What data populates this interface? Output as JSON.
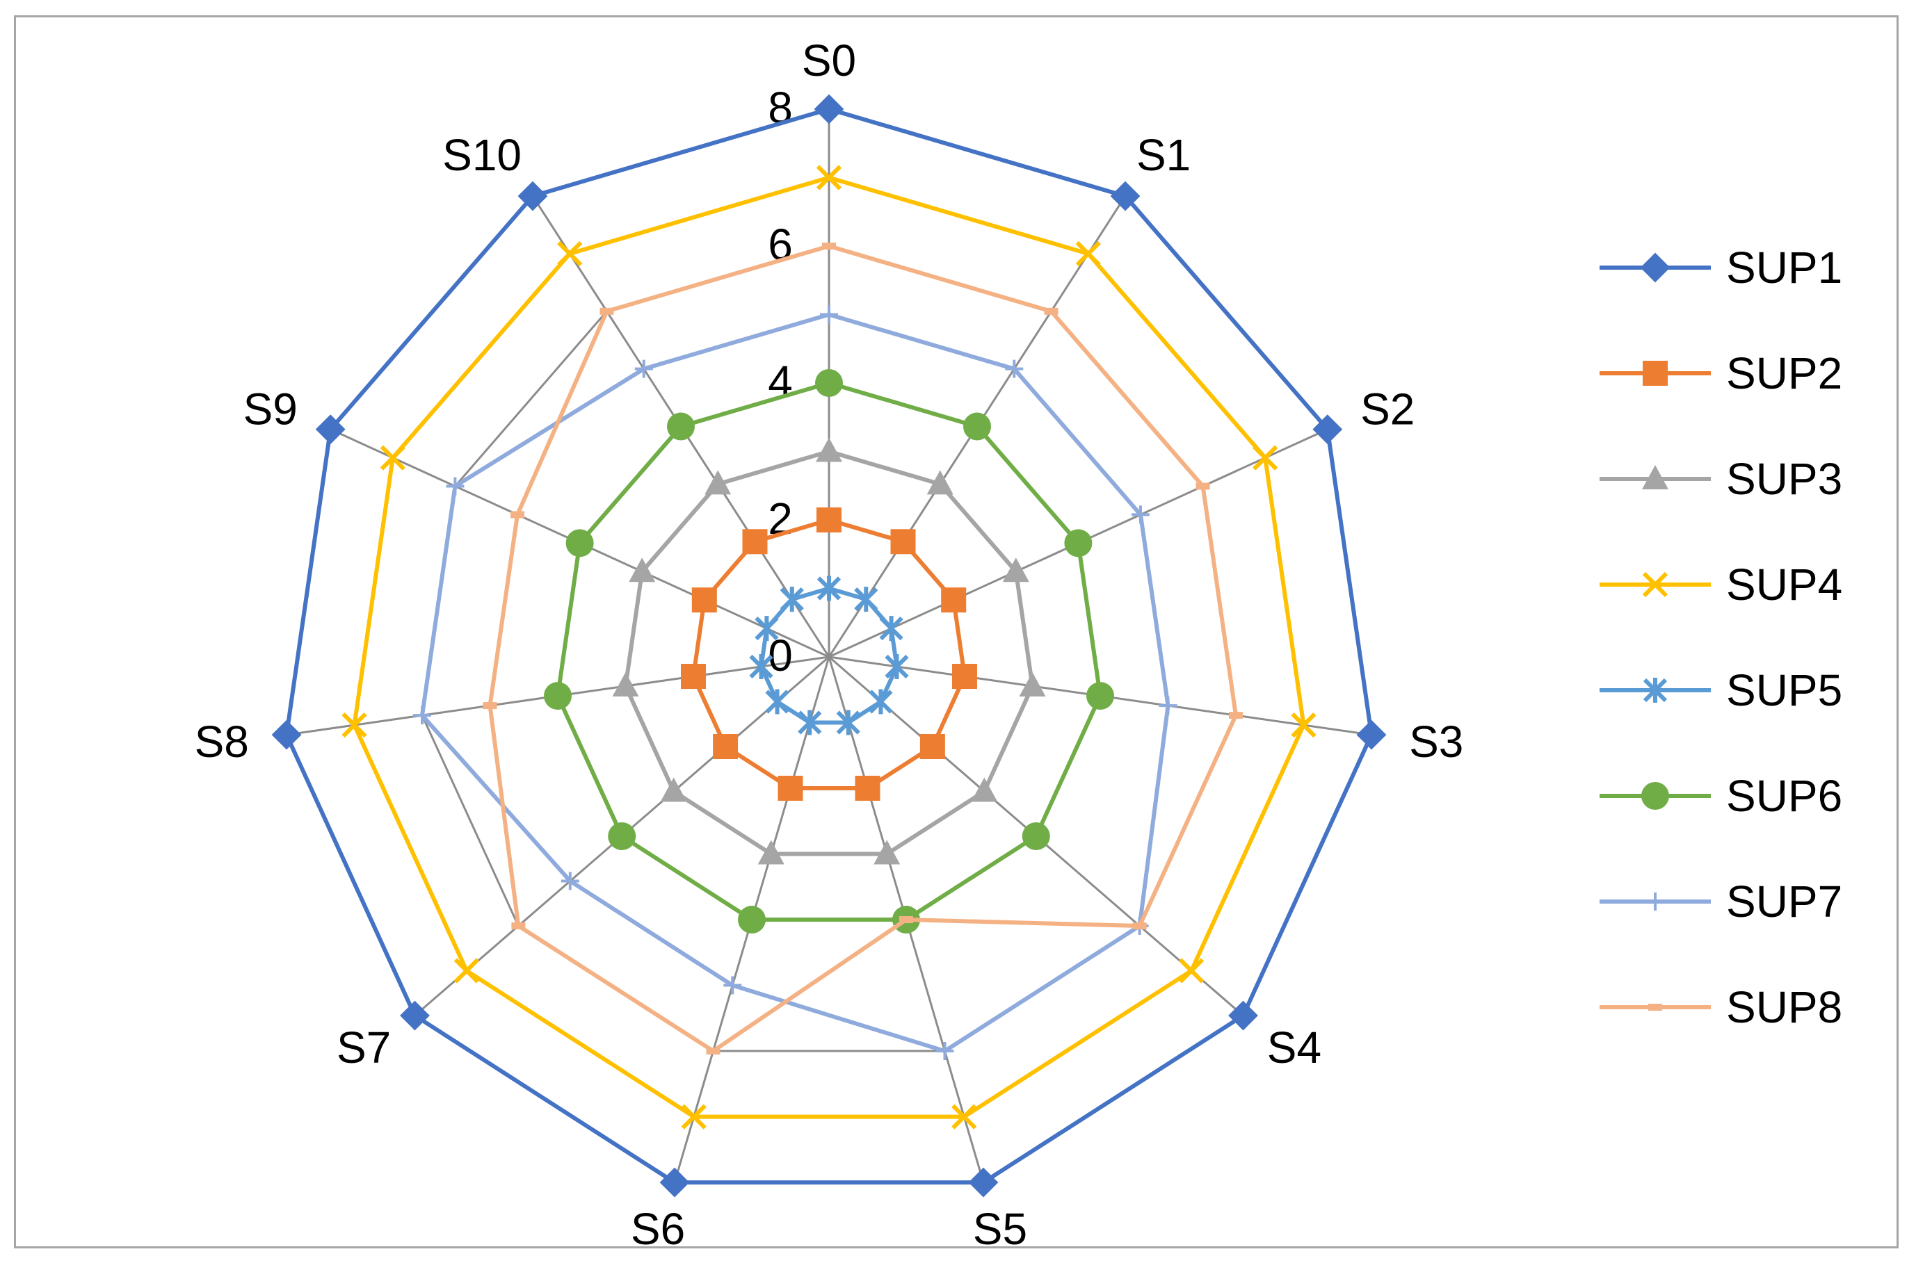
{
  "chart_data": {
    "type": "radar",
    "categories": [
      "S0",
      "S1",
      "S2",
      "S3",
      "S4",
      "S5",
      "S6",
      "S7",
      "S8",
      "S9",
      "S10"
    ],
    "r_ticks": [
      "0",
      "2",
      "4",
      "6",
      "8"
    ],
    "r_range": [
      0,
      8
    ],
    "grid": true,
    "legend_position": "right",
    "series": [
      {
        "name": "SUP1",
        "color": "#4472c4",
        "marker": "diamond",
        "values": [
          8,
          8,
          8,
          8,
          8,
          8,
          8,
          8,
          8,
          8,
          8
        ]
      },
      {
        "name": "SUP2",
        "color": "#ed7d31",
        "marker": "square",
        "values": [
          2,
          2,
          2,
          2,
          2,
          2,
          2,
          2,
          2,
          2,
          2
        ]
      },
      {
        "name": "SUP3",
        "color": "#a5a5a5",
        "marker": "triangle",
        "values": [
          3,
          3,
          3,
          3,
          3,
          3,
          3,
          3,
          3,
          3,
          3
        ]
      },
      {
        "name": "SUP4",
        "color": "#ffc000",
        "marker": "x",
        "values": [
          7,
          7,
          7,
          7,
          7,
          7,
          7,
          7,
          7,
          7,
          7
        ]
      },
      {
        "name": "SUP5",
        "color": "#5b9bd5",
        "marker": "asterisk",
        "values": [
          1,
          1,
          1,
          1,
          1,
          1,
          1,
          1,
          1,
          1,
          1
        ]
      },
      {
        "name": "SUP6",
        "color": "#70ad47",
        "marker": "circle",
        "values": [
          4,
          4,
          4,
          4,
          4,
          4,
          4,
          4,
          4,
          4,
          4
        ]
      },
      {
        "name": "SUP7",
        "color": "#8faadc",
        "marker": "plus",
        "values": [
          5,
          5,
          5,
          5,
          6,
          6,
          5,
          5,
          6,
          6,
          5
        ]
      },
      {
        "name": "SUP8",
        "color": "#f4b183",
        "marker": "dash",
        "values": [
          6,
          6,
          6,
          6,
          6,
          4,
          6,
          6,
          5,
          5,
          6
        ]
      }
    ]
  }
}
